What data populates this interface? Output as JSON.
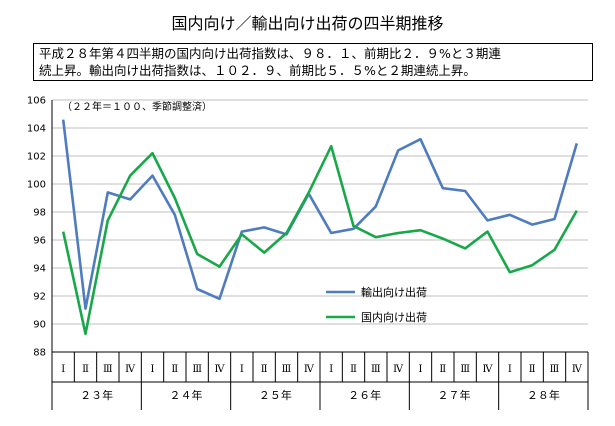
{
  "title": "国内向け／輸出向け出荷の四半期推移",
  "summary": "平成２８年第４四半期の国内向け出荷指数は、９８．１、前期比２．９%と３期連\n続上昇。輸出向け出荷指数は、１０２．９、前期比５．５%と２期連続上昇。",
  "unit_note": "（２２年＝１００、季節調整済）",
  "chart_data": {
    "type": "line",
    "title": "国内向け／輸出向け出荷の四半期推移",
    "ylim": [
      88,
      106
    ],
    "yticks": [
      88,
      90,
      92,
      94,
      96,
      98,
      100,
      102,
      104,
      106
    ],
    "grid": true,
    "legend_position": "center-right",
    "quarter_labels": [
      "Ⅰ",
      "Ⅱ",
      "Ⅲ",
      "Ⅳ",
      "Ⅰ",
      "Ⅱ",
      "Ⅲ",
      "Ⅳ",
      "Ⅰ",
      "Ⅱ",
      "Ⅲ",
      "Ⅳ",
      "Ⅰ",
      "Ⅱ",
      "Ⅲ",
      "Ⅳ",
      "Ⅰ",
      "Ⅱ",
      "Ⅲ",
      "Ⅳ",
      "Ⅰ",
      "Ⅱ",
      "Ⅲ",
      "Ⅳ"
    ],
    "year_labels": [
      "２３年",
      "２４年",
      "２５年",
      "２６年",
      "２７年",
      "２８年"
    ],
    "series": [
      {
        "name": "輸出向け出荷",
        "color": "#4f7cbe",
        "values": [
          104.6,
          91.1,
          99.4,
          98.9,
          100.6,
          97.8,
          92.5,
          91.8,
          96.6,
          96.9,
          96.4,
          99.3,
          96.5,
          96.8,
          98.4,
          102.4,
          103.2,
          99.7,
          99.5,
          97.4,
          97.8,
          97.1,
          97.5,
          102.9
        ]
      },
      {
        "name": "国内向け出荷",
        "color": "#18a84a",
        "values": [
          96.6,
          89.3,
          97.4,
          100.6,
          102.2,
          99.0,
          95.0,
          94.1,
          96.4,
          95.1,
          96.5,
          99.4,
          102.7,
          97.0,
          96.2,
          96.5,
          96.7,
          96.1,
          95.4,
          96.6,
          93.7,
          94.2,
          95.3,
          98.1
        ]
      }
    ]
  }
}
